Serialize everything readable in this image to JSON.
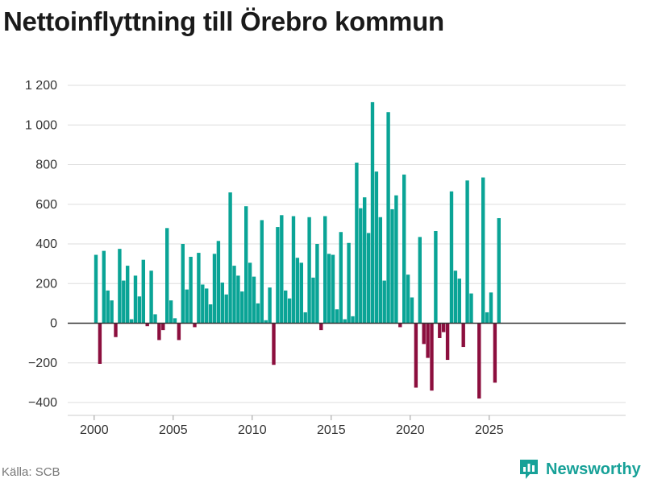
{
  "chart_data": {
    "type": "bar",
    "title": "Nettoinflyttning till Örebro kommun",
    "source": "Källa: SCB",
    "brand": "Newsworthy",
    "colors": {
      "positive": "#0aa496",
      "negative": "#8c0f3e",
      "grid": "#dddddd",
      "zero": "#333333"
    },
    "ylim": [
      -400,
      1200
    ],
    "yticks": [
      -400,
      -200,
      0,
      200,
      400,
      600,
      800,
      1000,
      1200
    ],
    "ytick_labels": [
      "−400",
      "−200",
      "0",
      "200",
      "400",
      "600",
      "800",
      "1 000",
      "1 200"
    ],
    "xticks": [
      "2000",
      "2005",
      "2010",
      "2015",
      "2020",
      "2025"
    ],
    "x_start": "2000-Q1",
    "values": [
      345,
      -205,
      365,
      165,
      115,
      -70,
      375,
      215,
      290,
      20,
      240,
      135,
      320,
      -15,
      265,
      45,
      -85,
      -35,
      480,
      115,
      25,
      -85,
      400,
      170,
      335,
      -20,
      355,
      195,
      175,
      95,
      350,
      415,
      205,
      145,
      660,
      290,
      240,
      160,
      590,
      305,
      235,
      100,
      520,
      15,
      180,
      -210,
      485,
      545,
      165,
      125,
      540,
      330,
      305,
      55,
      535,
      230,
      400,
      -35,
      540,
      350,
      345,
      70,
      460,
      20,
      405,
      35,
      810,
      580,
      635,
      455,
      1115,
      765,
      535,
      215,
      1065,
      575,
      645,
      -20,
      750,
      245,
      130,
      -325,
      435,
      -105,
      -175,
      -340,
      465,
      -75,
      -45,
      -185,
      665,
      265,
      225,
      -120,
      720,
      150,
      0,
      -380,
      735,
      55,
      155,
      -300,
      530
    ]
  }
}
